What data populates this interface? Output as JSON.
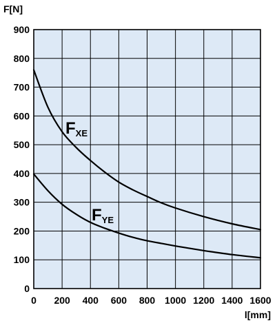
{
  "chart_data": {
    "type": "line",
    "xlabel": "l[mm]",
    "ylabel": "F[N]",
    "xlim": [
      0,
      1600
    ],
    "ylim": [
      0,
      900
    ],
    "x_ticks": [
      "0",
      "200",
      "400",
      "600",
      "800",
      "1000",
      "1200",
      "1400",
      "1600"
    ],
    "y_ticks": [
      "0",
      "100",
      "200",
      "300",
      "400",
      "500",
      "600",
      "700",
      "800",
      "900"
    ],
    "grid": true,
    "background": "#dde9f6",
    "line_color": "#000000",
    "series": [
      {
        "label_main": "F",
        "label_sub": "XE",
        "x": [
          0,
          100,
          200,
          300,
          400,
          500,
          600,
          700,
          800,
          900,
          1000,
          1200,
          1400,
          1600
        ],
        "y": [
          760,
          630,
          545,
          490,
          445,
          405,
          370,
          343,
          320,
          298,
          280,
          250,
          225,
          205
        ]
      },
      {
        "label_main": "F",
        "label_sub": "YE",
        "x": [
          0,
          100,
          200,
          300,
          400,
          500,
          600,
          700,
          800,
          900,
          1000,
          1200,
          1400,
          1600
        ],
        "y": [
          398,
          340,
          293,
          258,
          230,
          210,
          193,
          178,
          166,
          157,
          148,
          132,
          118,
          107
        ]
      }
    ]
  }
}
